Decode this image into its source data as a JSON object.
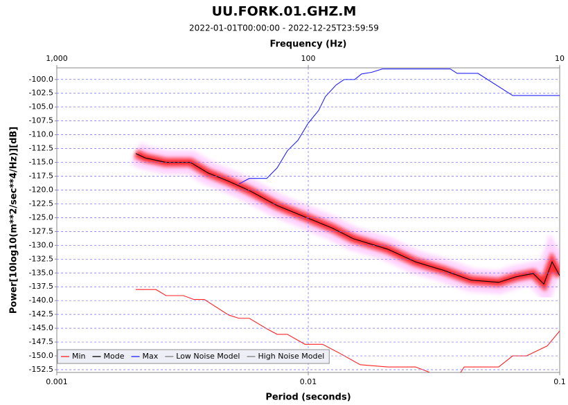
{
  "chart_data": {
    "type": "line",
    "title": "UU.FORK.01.GHZ.M",
    "subtitle": "2022-01-01T00:00:00 - 2022-12-25T23:59:59",
    "x_label": "Period (seconds)",
    "x2_label": "Frequency (Hz)",
    "y_label": "Power[10log10(m**2/sec**4/Hz)][dB]",
    "xscale": "log",
    "xlim": [
      0.001,
      0.1
    ],
    "xticks": [
      0.001,
      0.01,
      0.1
    ],
    "x2lim": [
      1000,
      10
    ],
    "x2ticks": [
      {
        "value": 1000,
        "label": "1,000"
      },
      100,
      10
    ],
    "ylim": [
      -153,
      -97.9
    ],
    "yticks": [
      {
        "value": -100,
        "label": "-100.0"
      },
      {
        "value": -102.5,
        "label": "-102.5"
      },
      {
        "value": -105,
        "label": "-105.0"
      },
      {
        "value": -107.5,
        "label": "-107.5"
      },
      {
        "value": -110,
        "label": "-110.0"
      },
      {
        "value": -112.5,
        "label": "-112.5"
      },
      {
        "value": -115,
        "label": "-115.0"
      },
      {
        "value": -117.5,
        "label": "-117.5"
      },
      {
        "value": -120,
        "label": "-120.0"
      },
      {
        "value": -122.5,
        "label": "-122.5"
      },
      {
        "value": -125,
        "label": "-125.0"
      },
      {
        "value": -127.5,
        "label": "-127.5"
      },
      {
        "value": -130,
        "label": "-130.0"
      },
      {
        "value": -132.5,
        "label": "-132.5"
      },
      {
        "value": -135,
        "label": "-135.0"
      },
      {
        "value": -137.5,
        "label": "-137.5"
      },
      {
        "value": -140,
        "label": "-140.0"
      },
      {
        "value": -142.5,
        "label": "-142.5"
      },
      {
        "value": -145,
        "label": "-145.0"
      },
      {
        "value": -147.5,
        "label": "-147.5"
      },
      {
        "value": -150,
        "label": "-150.0"
      },
      {
        "value": -152.5,
        "label": "-152.5"
      }
    ],
    "grid": true,
    "legend_position": "bottom-left",
    "series": [
      {
        "name": "Min",
        "color": "#ff2020",
        "x": [
          0.00206,
          0.00248,
          0.00272,
          0.00319,
          0.00351,
          0.00386,
          0.00482,
          0.0053,
          0.00583,
          0.00684,
          0.00752,
          0.00826,
          0.0097,
          0.0114,
          0.0133,
          0.0161,
          0.0207,
          0.0267,
          0.0301,
          0.0323,
          0.0391,
          0.0417,
          0.0473,
          0.0572,
          0.065,
          0.0738,
          0.0892,
          0.1
        ],
        "values": [
          -138,
          -138,
          -139.1,
          -139.1,
          -139.8,
          -139.8,
          -142.6,
          -143.2,
          -143.2,
          -145.1,
          -146.1,
          -146.1,
          -147.9,
          -147.9,
          -149.5,
          -151.6,
          -152,
          -152,
          -152.9,
          -154,
          -154,
          -152,
          -152,
          -152,
          -150,
          -150,
          -148.2,
          -145.5
        ]
      },
      {
        "name": "Mode",
        "color": "#000000",
        "x": [
          0.00206,
          0.00225,
          0.00272,
          0.0034,
          0.00399,
          0.00482,
          0.00583,
          0.00752,
          0.01,
          0.0125,
          0.0151,
          0.0207,
          0.0267,
          0.0344,
          0.0444,
          0.0572,
          0.067,
          0.0785,
          0.0865,
          0.0933,
          0.1
        ],
        "values": [
          -113.4,
          -114.2,
          -115,
          -115,
          -116.9,
          -118.4,
          -120.1,
          -122.8,
          -125.1,
          -126.9,
          -128.8,
          -130.7,
          -133,
          -134.5,
          -136.3,
          -136.7,
          -135.7,
          -135.1,
          -137,
          -133,
          -135.5
        ]
      },
      {
        "name": "Max",
        "color": "#2020ff",
        "x": [
          0.0053,
          0.00583,
          0.00684,
          0.00752,
          0.00826,
          0.0091,
          0.01,
          0.011,
          0.0117,
          0.0129,
          0.0139,
          0.0153,
          0.0163,
          0.0179,
          0.0197,
          0.0367,
          0.0391,
          0.0473,
          0.065,
          0.1
        ],
        "values": [
          -118.9,
          -117.9,
          -117.9,
          -116,
          -112.9,
          -111,
          -107.9,
          -105.6,
          -103.1,
          -101,
          -100,
          -100,
          -99,
          -98.7,
          -98.1,
          -98.1,
          -98.9,
          -98.9,
          -102.9,
          -102.9
        ]
      },
      {
        "name": "Low Noise Model",
        "color": "#808080",
        "x": [],
        "values": []
      },
      {
        "name": "High Noise Model",
        "color": "#808080",
        "x": [],
        "values": []
      }
    ]
  }
}
